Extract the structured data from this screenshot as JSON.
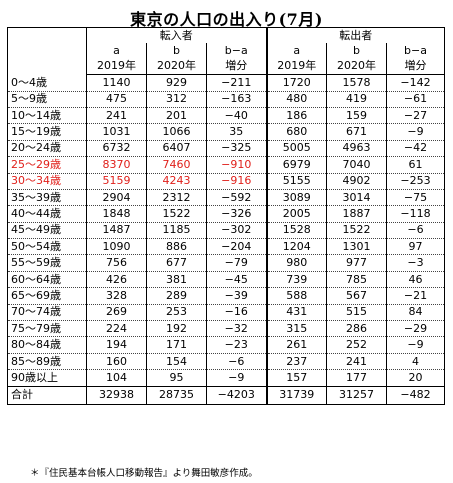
{
  "title": "東京の人口の出入り(7月)",
  "header": {
    "in_group": "転入者",
    "out_group": "転出者",
    "col_letters": [
      "a",
      "b",
      "b−a"
    ],
    "col_years": [
      "2019年",
      "2020年",
      "増分"
    ]
  },
  "rows": [
    {
      "label": "0〜4歳",
      "in": [
        "1140",
        "929",
        "−211"
      ],
      "out": [
        "1720",
        "1578",
        "−142"
      ],
      "highlight": false
    },
    {
      "label": "5〜9歳",
      "in": [
        "475",
        "312",
        "−163"
      ],
      "out": [
        "480",
        "419",
        "−61"
      ],
      "highlight": false
    },
    {
      "label": "10〜14歳",
      "in": [
        "241",
        "201",
        "−40"
      ],
      "out": [
        "186",
        "159",
        "−27"
      ],
      "highlight": false
    },
    {
      "label": "15〜19歳",
      "in": [
        "1031",
        "1066",
        "35"
      ],
      "out": [
        "680",
        "671",
        "−9"
      ],
      "highlight": false
    },
    {
      "label": "20〜24歳",
      "in": [
        "6732",
        "6407",
        "−325"
      ],
      "out": [
        "5005",
        "4963",
        "−42"
      ],
      "highlight": false
    },
    {
      "label": "25〜29歳",
      "in": [
        "8370",
        "7460",
        "−910"
      ],
      "out": [
        "6979",
        "7040",
        "61"
      ],
      "highlight": true
    },
    {
      "label": "30〜34歳",
      "in": [
        "5159",
        "4243",
        "−916"
      ],
      "out": [
        "5155",
        "4902",
        "−253"
      ],
      "highlight": true
    },
    {
      "label": "35〜39歳",
      "in": [
        "2904",
        "2312",
        "−592"
      ],
      "out": [
        "3089",
        "3014",
        "−75"
      ],
      "highlight": false
    },
    {
      "label": "40〜44歳",
      "in": [
        "1848",
        "1522",
        "−326"
      ],
      "out": [
        "2005",
        "1887",
        "−118"
      ],
      "highlight": false
    },
    {
      "label": "45〜49歳",
      "in": [
        "1487",
        "1185",
        "−302"
      ],
      "out": [
        "1528",
        "1522",
        "−6"
      ],
      "highlight": false
    },
    {
      "label": "50〜54歳",
      "in": [
        "1090",
        "886",
        "−204"
      ],
      "out": [
        "1204",
        "1301",
        "97"
      ],
      "highlight": false
    },
    {
      "label": "55〜59歳",
      "in": [
        "756",
        "677",
        "−79"
      ],
      "out": [
        "980",
        "977",
        "−3"
      ],
      "highlight": false
    },
    {
      "label": "60〜64歳",
      "in": [
        "426",
        "381",
        "−45"
      ],
      "out": [
        "739",
        "785",
        "46"
      ],
      "highlight": false
    },
    {
      "label": "65〜69歳",
      "in": [
        "328",
        "289",
        "−39"
      ],
      "out": [
        "588",
        "567",
        "−21"
      ],
      "highlight": false
    },
    {
      "label": "70〜74歳",
      "in": [
        "269",
        "253",
        "−16"
      ],
      "out": [
        "431",
        "515",
        "84"
      ],
      "highlight": false
    },
    {
      "label": "75〜79歳",
      "in": [
        "224",
        "192",
        "−32"
      ],
      "out": [
        "315",
        "286",
        "−29"
      ],
      "highlight": false
    },
    {
      "label": "80〜84歳",
      "in": [
        "194",
        "171",
        "−23"
      ],
      "out": [
        "261",
        "252",
        "−9"
      ],
      "highlight": false
    },
    {
      "label": "85〜89歳",
      "in": [
        "160",
        "154",
        "−6"
      ],
      "out": [
        "237",
        "241",
        "4"
      ],
      "highlight": false
    },
    {
      "label": "90歳以上",
      "in": [
        "104",
        "95",
        "−9"
      ],
      "out": [
        "157",
        "177",
        "20"
      ],
      "highlight": false
    }
  ],
  "total": {
    "label": "合計",
    "in": [
      "32938",
      "28735",
      "−4203"
    ],
    "out": [
      "31739",
      "31257",
      "−482"
    ]
  },
  "note": "＊『住民基本台帳人口移動報告』より舞田敏彦作成。",
  "colors": {
    "highlight": "#e0201b"
  }
}
